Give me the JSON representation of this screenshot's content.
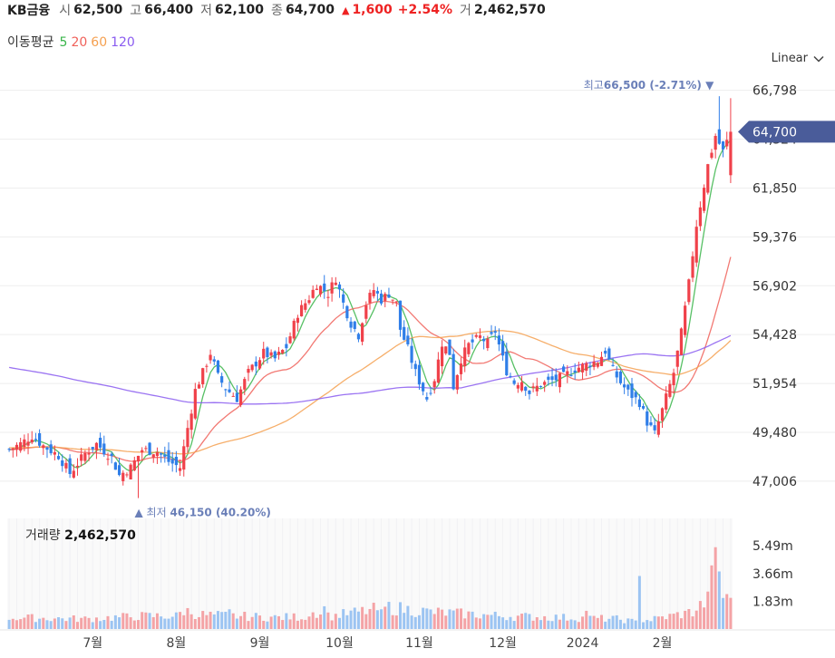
{
  "header": {
    "name": "KB금융",
    "open_label": "시",
    "open": "62,500",
    "high_label": "고",
    "high": "66,400",
    "low_label": "저",
    "low": "62,100",
    "close_label": "종",
    "close": "64,700",
    "change_arrow": "▲",
    "change": "1,600",
    "change_pct": "+2.54%",
    "volume_label": "거",
    "volume": "2,462,570"
  },
  "ma_legend": {
    "label": "이동평균",
    "items": [
      {
        "text": "5",
        "color": "#39b54a"
      },
      {
        "text": "20",
        "color": "#f0615a"
      },
      {
        "text": "60",
        "color": "#f5a050"
      },
      {
        "text": "120",
        "color": "#8a5cf0"
      }
    ]
  },
  "scale_toggle": "Linear",
  "colors": {
    "up": "#f0414a",
    "down": "#2f7ee8",
    "up_vol": "#f4a3a6",
    "down_vol": "#9cc4f2",
    "price_tag": "#4a5c9a"
  },
  "chart_data": {
    "type": "candlestick",
    "price_ticks": [
      47006,
      49480,
      51954,
      54428,
      56902,
      59376,
      61850,
      64324,
      66798
    ],
    "price_tick_labels": [
      "47,006",
      "49,480",
      "51,954",
      "54,428",
      "56,902",
      "59,376",
      "61,850",
      "64,324",
      "66,798"
    ],
    "ylim": [
      45900,
      67700
    ],
    "current_price": 64700,
    "current_price_label": "64,700",
    "max_annotation": {
      "prefix": "최고",
      "value": "66,500",
      "pct": "(-2.71%)",
      "arrow": "▼"
    },
    "min_annotation": {
      "prefix": "최저",
      "value": "46,150",
      "pct": "(40.20%)",
      "arrow": "▲"
    },
    "month_labels": [
      "7월",
      "8월",
      "9월",
      "10월",
      "11월",
      "12월",
      "2024",
      "2월"
    ],
    "volume_title": "거래량",
    "volume_value": "2,462,570",
    "volume_ticks": [
      1.83,
      3.66,
      5.49
    ],
    "volume_tick_labels": [
      "1.83m",
      "3.66m",
      "5.49m"
    ],
    "volume_max": 7.3,
    "price_anchors": [
      [
        0,
        48600
      ],
      [
        3,
        48900
      ],
      [
        6,
        49300
      ],
      [
        9,
        48800
      ],
      [
        13,
        48300
      ],
      [
        16,
        47400
      ],
      [
        20,
        48400
      ],
      [
        23,
        48900
      ],
      [
        27,
        48200
      ],
      [
        29,
        47300
      ],
      [
        32,
        47700
      ],
      [
        35,
        48600
      ],
      [
        39,
        48500
      ],
      [
        42,
        48000
      ],
      [
        45,
        47700
      ],
      [
        47,
        49700
      ],
      [
        49,
        51600
      ],
      [
        51,
        52500
      ],
      [
        53,
        53500
      ],
      [
        55,
        52300
      ],
      [
        57,
        51700
      ],
      [
        60,
        51200
      ],
      [
        63,
        52500
      ],
      [
        67,
        53500
      ],
      [
        70,
        53200
      ],
      [
        73,
        53800
      ],
      [
        76,
        55500
      ],
      [
        79,
        56300
      ],
      [
        81,
        57000
      ],
      [
        84,
        56500
      ],
      [
        86,
        57300
      ],
      [
        88,
        56000
      ],
      [
        90,
        55000
      ],
      [
        92,
        54400
      ],
      [
        94,
        56000
      ],
      [
        96,
        56700
      ],
      [
        98,
        56200
      ],
      [
        100,
        56500
      ],
      [
        102,
        56000
      ],
      [
        103,
        54700
      ],
      [
        105,
        53700
      ],
      [
        107,
        52500
      ],
      [
        110,
        51200
      ],
      [
        112,
        52200
      ],
      [
        114,
        54000
      ],
      [
        116,
        53500
      ],
      [
        117,
        51800
      ],
      [
        119,
        53200
      ],
      [
        121,
        53900
      ],
      [
        124,
        54300
      ],
      [
        126,
        54000
      ],
      [
        128,
        54600
      ],
      [
        130,
        53200
      ],
      [
        131,
        52600
      ],
      [
        133,
        52000
      ],
      [
        135,
        52100
      ],
      [
        137,
        51500
      ],
      [
        140,
        51900
      ],
      [
        143,
        52100
      ],
      [
        146,
        52300
      ],
      [
        149,
        52700
      ],
      [
        152,
        52900
      ],
      [
        155,
        53100
      ],
      [
        157,
        53600
      ],
      [
        159,
        52600
      ],
      [
        161,
        52000
      ],
      [
        163,
        51500
      ],
      [
        166,
        51000
      ],
      [
        168,
        50000
      ],
      [
        170,
        49400
      ],
      [
        172,
        50600
      ],
      [
        175,
        52500
      ],
      [
        177,
        54500
      ],
      [
        179,
        57000
      ],
      [
        181,
        60000
      ],
      [
        184,
        63000
      ],
      [
        186,
        64500
      ],
      [
        188,
        63700
      ],
      [
        190,
        64700
      ]
    ],
    "volume_anchors": [
      [
        0,
        0.8
      ],
      [
        20,
        0.7
      ],
      [
        35,
        0.9
      ],
      [
        44,
        0.9
      ],
      [
        46,
        1.3
      ],
      [
        50,
        1.0
      ],
      [
        70,
        0.8
      ],
      [
        85,
        0.9
      ],
      [
        100,
        1.5
      ],
      [
        110,
        1.2
      ],
      [
        130,
        0.9
      ],
      [
        160,
        0.7
      ],
      [
        165,
        0.5
      ],
      [
        170,
        0.7
      ],
      [
        180,
        1.2
      ],
      [
        185,
        2.2
      ],
      [
        190,
        2.4
      ]
    ],
    "volume_spikes": [
      [
        58,
        1.3
      ],
      [
        80,
        1.1
      ],
      [
        83,
        1.5
      ],
      [
        98,
        1.3
      ],
      [
        152,
        1.2
      ],
      [
        166,
        3.5
      ],
      [
        174,
        1.0
      ],
      [
        178,
        1.2
      ],
      [
        185,
        4.2
      ],
      [
        186,
        5.4
      ],
      [
        187,
        3.8
      ]
    ]
  }
}
